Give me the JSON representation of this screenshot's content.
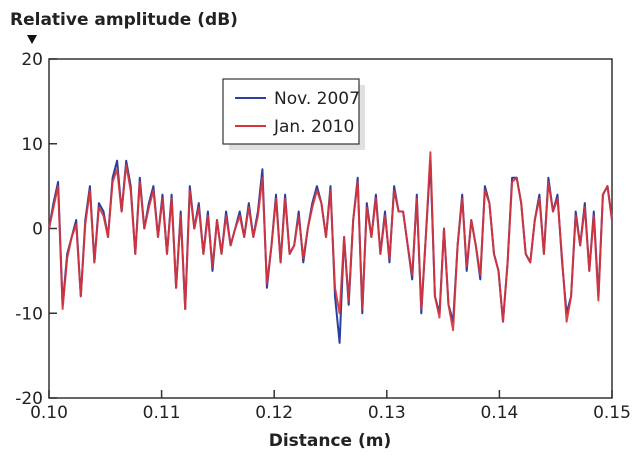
{
  "chart_data": {
    "type": "line",
    "title": "",
    "ylabel": "Relative amplitude (dB)",
    "xlabel": "Distance (m)",
    "xlim": [
      0.1,
      0.15
    ],
    "ylim": [
      -20,
      20
    ],
    "xticks": [
      "0.10",
      "0.11",
      "0.12",
      "0.13",
      "0.14",
      "0.15"
    ],
    "yticks": [
      "20",
      "10",
      "0",
      "-10",
      "-20"
    ],
    "grid": false,
    "legend_position": "top-center",
    "x_sampling": "evenly spaced from 0.10 to 0.15",
    "series": [
      {
        "name": "Nov. 2007",
        "color": "#2b3f9e",
        "values": [
          0,
          3,
          5.5,
          -9,
          -3,
          -1,
          1,
          -8,
          1,
          5,
          -4,
          3,
          2,
          -1,
          6,
          8,
          2,
          8,
          5,
          -3,
          6,
          0,
          3,
          5,
          -1,
          4,
          -3,
          4,
          -7,
          2,
          -9.5,
          5,
          0,
          3,
          -3,
          2,
          -5,
          1,
          -3,
          2,
          -2,
          0,
          2,
          -1,
          3,
          -1,
          2,
          7,
          -7,
          -2,
          4,
          -4,
          4,
          -3,
          -2,
          2,
          -4,
          0,
          3,
          5,
          3,
          -1,
          5,
          -8,
          -13.5,
          -1,
          -9,
          1,
          6,
          -10,
          3,
          -1,
          4,
          -3,
          2,
          -4,
          5,
          2,
          2,
          -2,
          -6,
          4,
          -10,
          -1,
          8,
          -8,
          -10,
          0,
          -9,
          -11,
          -2,
          4,
          -5,
          1,
          -2,
          -6,
          5,
          3,
          -3,
          -5,
          -11,
          -4,
          6,
          6,
          3,
          -3,
          -4,
          1,
          4,
          -3,
          6,
          2,
          4,
          -4,
          -10,
          -8,
          2,
          -2,
          3,
          -5,
          2,
          -8,
          4,
          5,
          1
        ]
      },
      {
        "name": "Jan. 2010",
        "color": "#d9343a",
        "values": [
          0,
          2.5,
          5,
          -9.5,
          -3.5,
          -1,
          0.5,
          -8,
          0.5,
          4.5,
          -4,
          2.5,
          1.5,
          -1,
          5.5,
          7,
          2,
          7.5,
          4.5,
          -3,
          5.5,
          0,
          2.5,
          4.5,
          -1,
          3.5,
          -3,
          3.5,
          -7,
          1.5,
          -9.5,
          4.5,
          0,
          2.5,
          -3,
          1.5,
          -4.5,
          1,
          -3,
          1.5,
          -2,
          0,
          1.5,
          -1,
          2.5,
          -1,
          1.5,
          6,
          -6.5,
          -2,
          3.5,
          -4,
          3.5,
          -3,
          -2,
          1.5,
          -3.5,
          0,
          2.5,
          4.5,
          3,
          -1,
          4.5,
          -7,
          -10,
          -1,
          -8.5,
          1,
          5.5,
          -9.5,
          2.5,
          -1,
          3.5,
          -3,
          1.5,
          -3.5,
          4.5,
          2,
          2,
          -2,
          -5.5,
          3.5,
          -9.5,
          -1,
          9,
          -8,
          -10.5,
          0,
          -9,
          -12,
          -2,
          3.5,
          -4.5,
          1,
          -2,
          -5.5,
          4.5,
          3,
          -3,
          -5,
          -11,
          -4,
          5.5,
          6,
          3,
          -3,
          -4,
          1,
          3.5,
          -3,
          5.5,
          2,
          3.5,
          -3.5,
          -11,
          -8,
          1.5,
          -2,
          2.5,
          -5,
          1.5,
          -8.5,
          4,
          5,
          1
        ]
      }
    ]
  }
}
